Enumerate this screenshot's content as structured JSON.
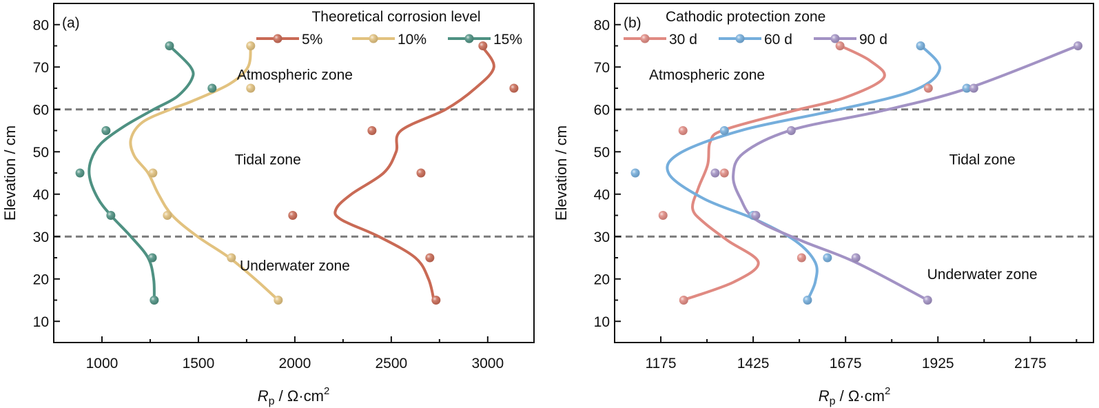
{
  "chart_data": [
    {
      "type": "scatter",
      "panel_label": "(a)",
      "xlabel_main": "R",
      "xlabel_sub": "p",
      "xlabel_rest": " / Ω·cm",
      "xlabel_sup": "2",
      "ylabel": "Elevation / cm",
      "xlim": [
        750,
        3240
      ],
      "ylim": [
        5,
        85
      ],
      "xticks": [
        1000,
        1500,
        2000,
        2500,
        3000
      ],
      "xtick_labels": [
        "1000",
        "1500",
        "2000",
        "2500",
        "3000"
      ],
      "xminor": [
        1250,
        1750,
        2250,
        2750
      ],
      "yticks": [
        10,
        20,
        30,
        40,
        50,
        60,
        70,
        80
      ],
      "ytick_labels": [
        "10",
        "20",
        "30",
        "40",
        "50",
        "60",
        "70",
        "80"
      ],
      "yminor": [
        15,
        25,
        35,
        45,
        55,
        65,
        75
      ],
      "zone_boundaries": [
        30,
        60
      ],
      "zones": [
        {
          "label": "Atmospheric zone",
          "x": 2000,
          "y": 67
        },
        {
          "label": "Tidal zone",
          "x": 1860,
          "y": 47
        },
        {
          "label": "Underwater zone",
          "x": 2000,
          "y": 22
        }
      ],
      "legend": {
        "title": "Theoretical corrosion level",
        "position": "top-right"
      },
      "series": [
        {
          "name": "5%",
          "color": "#c96a55",
          "points": [
            [
              2975,
              75
            ],
            [
              3136,
              65
            ],
            [
              2400,
              55
            ],
            [
              2654,
              45
            ],
            [
              1989,
              35
            ],
            [
              2700,
              25
            ],
            [
              2732,
              15
            ]
          ],
          "fit": [
            [
              2968,
              75
            ],
            [
              3032,
              70
            ],
            [
              2936,
              65
            ],
            [
              2782,
              60
            ],
            [
              2550,
              55
            ],
            [
              2525,
              50
            ],
            [
              2460,
              45
            ],
            [
              2293,
              40
            ],
            [
              2214,
              36.5
            ],
            [
              2240,
              34
            ],
            [
              2436,
              30
            ],
            [
              2625,
              25
            ],
            [
              2693,
              20
            ],
            [
              2721,
              15
            ]
          ]
        },
        {
          "name": "10%",
          "color": "#e2c27f",
          "points": [
            [
              1771,
              75
            ],
            [
              1771,
              65
            ],
            [
              1264,
              45
            ],
            [
              1339,
              35
            ],
            [
              1671,
              25
            ],
            [
              1914,
              15
            ]
          ],
          "fit": [
            [
              1771,
              75
            ],
            [
              1757,
              70
            ],
            [
              1661,
              66
            ],
            [
              1471,
              62
            ],
            [
              1354,
              60
            ],
            [
              1211,
              57
            ],
            [
              1150,
              53
            ],
            [
              1168,
              49
            ],
            [
              1239,
              45
            ],
            [
              1293,
              40
            ],
            [
              1364,
              35
            ],
            [
              1496,
              30
            ],
            [
              1661,
              25
            ],
            [
              1793,
              20
            ],
            [
              1914,
              15
            ]
          ]
        },
        {
          "name": "15%",
          "color": "#4e9182",
          "points": [
            [
              1350,
              75
            ],
            [
              1571,
              65
            ],
            [
              1021,
              55
            ],
            [
              886,
              45
            ],
            [
              1046,
              35
            ],
            [
              1261,
              25
            ],
            [
              1271,
              15
            ]
          ],
          "fit": [
            [
              1350,
              75
            ],
            [
              1460,
              70
            ],
            [
              1464,
              67
            ],
            [
              1389,
              63
            ],
            [
              1268,
              60
            ],
            [
              1114,
              56
            ],
            [
              996,
              52
            ],
            [
              943,
              48
            ],
            [
              936,
              44
            ],
            [
              979,
              39
            ],
            [
              1046,
              35
            ],
            [
              1150,
              30
            ],
            [
              1239,
              25
            ],
            [
              1268,
              20
            ],
            [
              1271,
              15
            ]
          ]
        }
      ]
    },
    {
      "type": "scatter",
      "panel_label": "(b)",
      "xlabel_main": "R",
      "xlabel_sub": "p",
      "xlabel_rest": " / Ω·cm",
      "xlabel_sup": "2",
      "ylabel": "Elevation / cm",
      "xlim": [
        1050,
        2346
      ],
      "ylim": [
        5,
        85
      ],
      "xticks": [
        1175,
        1425,
        1675,
        1925,
        2175
      ],
      "xtick_labels": [
        "1175",
        "1425",
        "1675",
        "1925",
        "2175"
      ],
      "xminor": [
        1300,
        1550,
        1800,
        2050,
        2300
      ],
      "yticks": [
        10,
        20,
        30,
        40,
        50,
        60,
        70,
        80
      ],
      "ytick_labels": [
        "10",
        "20",
        "30",
        "40",
        "50",
        "60",
        "70",
        "80"
      ],
      "yminor": [
        15,
        25,
        35,
        45,
        55,
        65,
        75
      ],
      "zone_boundaries": [
        30,
        60
      ],
      "zones": [
        {
          "label": "Atmospheric zone",
          "x": 1300,
          "y": 67
        },
        {
          "label": "Tidal zone",
          "x": 2045,
          "y": 47
        },
        {
          "label": "Underwater zone",
          "x": 2045,
          "y": 20
        }
      ],
      "legend": {
        "title": "Cathodic protection zone",
        "position": "top-left"
      },
      "series": [
        {
          "name": "30 d",
          "color": "#e08a82",
          "points": [
            [
              1660,
              75
            ],
            [
              1899,
              65
            ],
            [
              1235,
              55
            ],
            [
              1347,
              45
            ],
            [
              1181,
              35
            ],
            [
              1556,
              25
            ],
            [
              1237,
              15
            ]
          ],
          "fit": [
            [
              1661,
              75
            ],
            [
              1741,
              71.5
            ],
            [
              1778,
              67.4
            ],
            [
              1671,
              62.7
            ],
            [
              1531,
              59.6
            ],
            [
              1347,
              55.2
            ],
            [
              1309,
              52.4
            ],
            [
              1302,
              47
            ],
            [
              1277,
              41.5
            ],
            [
              1261,
              36.6
            ],
            [
              1292,
              33.3
            ],
            [
              1357,
              29
            ],
            [
              1439,
              23.9
            ],
            [
              1373,
              19.3
            ],
            [
              1235,
              15
            ]
          ]
        },
        {
          "name": "60 d",
          "color": "#75aedc",
          "points": [
            [
              1878,
              75
            ],
            [
              2003,
              65
            ],
            [
              1347,
              55
            ],
            [
              1106,
              45
            ],
            [
              1425,
              35
            ],
            [
              1626,
              25
            ],
            [
              1572,
              15
            ]
          ],
          "fit": [
            [
              1880,
              75
            ],
            [
              1930,
              69.6
            ],
            [
              1855,
              64.3
            ],
            [
              1637,
              59.6
            ],
            [
              1399,
              55.2
            ],
            [
              1227,
              49.7
            ],
            [
              1197,
              44.8
            ],
            [
              1292,
              38.9
            ],
            [
              1432,
              34
            ],
            [
              1539,
              29
            ],
            [
              1593,
              23.9
            ],
            [
              1593,
              19.3
            ],
            [
              1572,
              15
            ]
          ]
        },
        {
          "name": "90 d",
          "color": "#a292c4",
          "points": [
            [
              2304,
              75
            ],
            [
              2022,
              65
            ],
            [
              1528,
              55
            ],
            [
              1322,
              45
            ],
            [
              1432,
              35
            ],
            [
              1703,
              25
            ],
            [
              1897,
              15
            ]
          ],
          "fit": [
            [
              2303,
              75
            ],
            [
              2007,
              65
            ],
            [
              1770,
              59.6
            ],
            [
              1531,
              55.2
            ],
            [
              1399,
              49.7
            ],
            [
              1371,
              44.3
            ],
            [
              1391,
              38.9
            ],
            [
              1432,
              34
            ],
            [
              1556,
              29
            ],
            [
              1703,
              23.9
            ],
            [
              1897,
              15
            ]
          ]
        }
      ]
    }
  ]
}
